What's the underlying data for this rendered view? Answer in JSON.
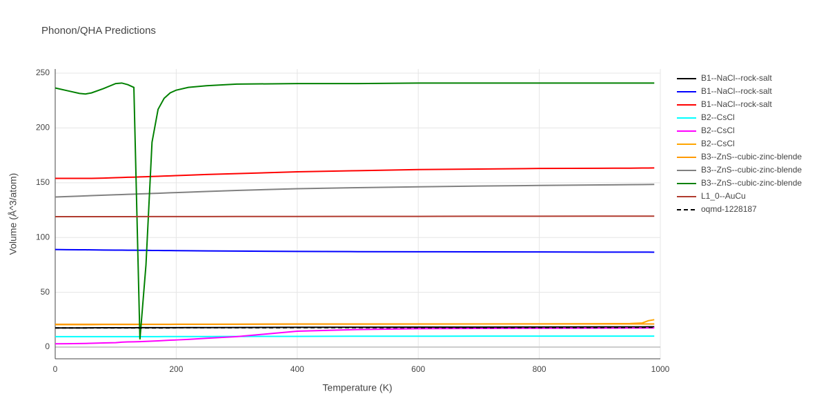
{
  "chart_data": {
    "type": "line",
    "title": "Phonon/QHA Predictions",
    "x_label": "Temperature (K)",
    "y_label": "Volume (Å^3/atom)",
    "x": [
      0,
      20,
      40,
      50,
      60,
      80,
      100,
      110,
      120,
      130,
      140,
      150,
      160,
      170,
      180,
      190,
      200,
      220,
      250,
      300,
      400,
      500,
      600,
      700,
      800,
      900,
      950,
      970,
      980,
      990
    ],
    "xlim": [
      0,
      1000
    ],
    "xticks": [
      0,
      200,
      400,
      600,
      800,
      1000
    ],
    "ylim": [
      -10.7,
      253.8
    ],
    "yticks": [
      0,
      50,
      100,
      150,
      200,
      250
    ],
    "grid": true,
    "series": [
      {
        "name": "B1--NaCl--rock-salt",
        "color": "#000000",
        "dash": false,
        "values": [
          17.5,
          17.5,
          17.5,
          17.5,
          17.6,
          17.6,
          17.6,
          17.6,
          17.6,
          17.6,
          17.7,
          17.7,
          17.7,
          17.7,
          17.7,
          17.7,
          17.7,
          17.8,
          17.8,
          17.9,
          18,
          18.1,
          18.2,
          18.2,
          18.3,
          18.4,
          18.4,
          18.4,
          18.5,
          18.5
        ]
      },
      {
        "name": "B1--NaCl--rock-salt",
        "color": "#0000ff",
        "dash": false,
        "values": [
          89,
          88.9,
          88.8,
          88.8,
          88.7,
          88.6,
          88.5,
          88.5,
          88.4,
          88.4,
          88.3,
          88.3,
          88.2,
          88.2,
          88.1,
          88.1,
          88,
          87.9,
          87.8,
          87.6,
          87.3,
          87.1,
          87,
          86.9,
          86.8,
          86.7,
          86.7,
          86.7,
          86.7,
          86.6
        ]
      },
      {
        "name": "B1--NaCl--rock-salt",
        "color": "#ff0000",
        "dash": false,
        "values": [
          154,
          154,
          154,
          154,
          154,
          154.2,
          154.6,
          154.8,
          155,
          155.1,
          155.3,
          155.5,
          155.7,
          155.9,
          156.1,
          156.3,
          156.5,
          156.9,
          157.5,
          158.3,
          160,
          161,
          162,
          162.5,
          163,
          163.2,
          163.3,
          163.4,
          163.4,
          163.5
        ]
      },
      {
        "name": "B2--CsCl",
        "color": "#00ffff",
        "dash": false,
        "values": [
          9.5,
          9.5,
          9.5,
          9.5,
          9.5,
          9.5,
          9.5,
          9.5,
          9.5,
          9.5,
          9.5,
          9.5,
          9.5,
          9.5,
          9.6,
          9.6,
          9.6,
          9.6,
          9.6,
          9.7,
          9.8,
          9.9,
          9.9,
          10,
          10,
          10,
          10,
          10,
          10,
          10
        ]
      },
      {
        "name": "B2--CsCl",
        "color": "#ff00ff",
        "dash": false,
        "values": [
          3,
          3.1,
          3.2,
          3.3,
          3.5,
          3.8,
          4,
          4.5,
          4.7,
          4.8,
          5,
          5.2,
          5.4,
          5.7,
          6,
          6.3,
          6.5,
          7,
          8,
          9.5,
          14.5,
          16,
          16.8,
          17,
          17.2,
          17.3,
          17.4,
          17.4,
          17.5,
          17.5
        ]
      },
      {
        "name": "B2--CsCl",
        "color": "#ffa500",
        "dash": false,
        "values": [
          20.5,
          20.5,
          20.5,
          20.5,
          20.5,
          20.6,
          20.6,
          20.6,
          20.6,
          20.6,
          20.7,
          20.7,
          20.7,
          20.7,
          20.7,
          20.7,
          20.8,
          20.8,
          20.8,
          20.9,
          21,
          21,
          21.1,
          21.1,
          21.2,
          21.3,
          21.5,
          22,
          24,
          25
        ]
      },
      {
        "name": "B3--ZnS--cubic-zinc-blende",
        "color": "#ff9900",
        "dash": false,
        "values": [
          20.8,
          20.8,
          20.8,
          20.8,
          20.8,
          20.8,
          20.8,
          20.8,
          20.8,
          20.8,
          20.8,
          20.8,
          20.8,
          20.8,
          20.8,
          20.8,
          20.9,
          20.9,
          20.9,
          20.9,
          21,
          21,
          21,
          21.1,
          21.1,
          21.1,
          21.1,
          21.1,
          21.1,
          21.1
        ]
      },
      {
        "name": "B3--ZnS--cubic-zinc-blende",
        "color": "#808080",
        "dash": false,
        "values": [
          137,
          137.4,
          137.8,
          138,
          138.2,
          138.6,
          139,
          139.2,
          139.4,
          139.6,
          139.8,
          140,
          140.2,
          140.4,
          140.6,
          140.8,
          141,
          141.4,
          142,
          143,
          144.5,
          145.5,
          146.3,
          147,
          147.5,
          148,
          148.2,
          148.3,
          148.4,
          148.5
        ]
      },
      {
        "name": "B3--ZnS--cubic-zinc-blende",
        "color": "#008000",
        "dash": false,
        "values": [
          236.5,
          234,
          231.5,
          231,
          232,
          236,
          240.5,
          241,
          239.5,
          237,
          7,
          75,
          187,
          217,
          227,
          232,
          234.5,
          237,
          238.5,
          240,
          240.5,
          240.5,
          241,
          241,
          241,
          241,
          241,
          241,
          241,
          241
        ]
      },
      {
        "name": "L1_0--AuCu",
        "color": "#b03a2e",
        "dash": false,
        "values": [
          119,
          119,
          119,
          119,
          119,
          119,
          119,
          119,
          119,
          119,
          119.1,
          119.1,
          119.1,
          119.1,
          119.1,
          119.1,
          119.1,
          119.1,
          119.1,
          119.2,
          119.2,
          119.3,
          119.3,
          119.4,
          119.4,
          119.5,
          119.5,
          119.5,
          119.5,
          119.5
        ]
      },
      {
        "name": "oqmd-1228187",
        "color": "#000000",
        "dash": true,
        "values": [
          17.5,
          17.5,
          17.5,
          17.5,
          17.5,
          17.5,
          17.5,
          17.5,
          17.5,
          17.5,
          17.5,
          17.5,
          17.5,
          17.5,
          17.5,
          17.5,
          17.6,
          17.6,
          17.6,
          17.6,
          17.7,
          17.7,
          17.8,
          17.8,
          17.9,
          17.9,
          18,
          18,
          18,
          18
        ]
      }
    ]
  }
}
